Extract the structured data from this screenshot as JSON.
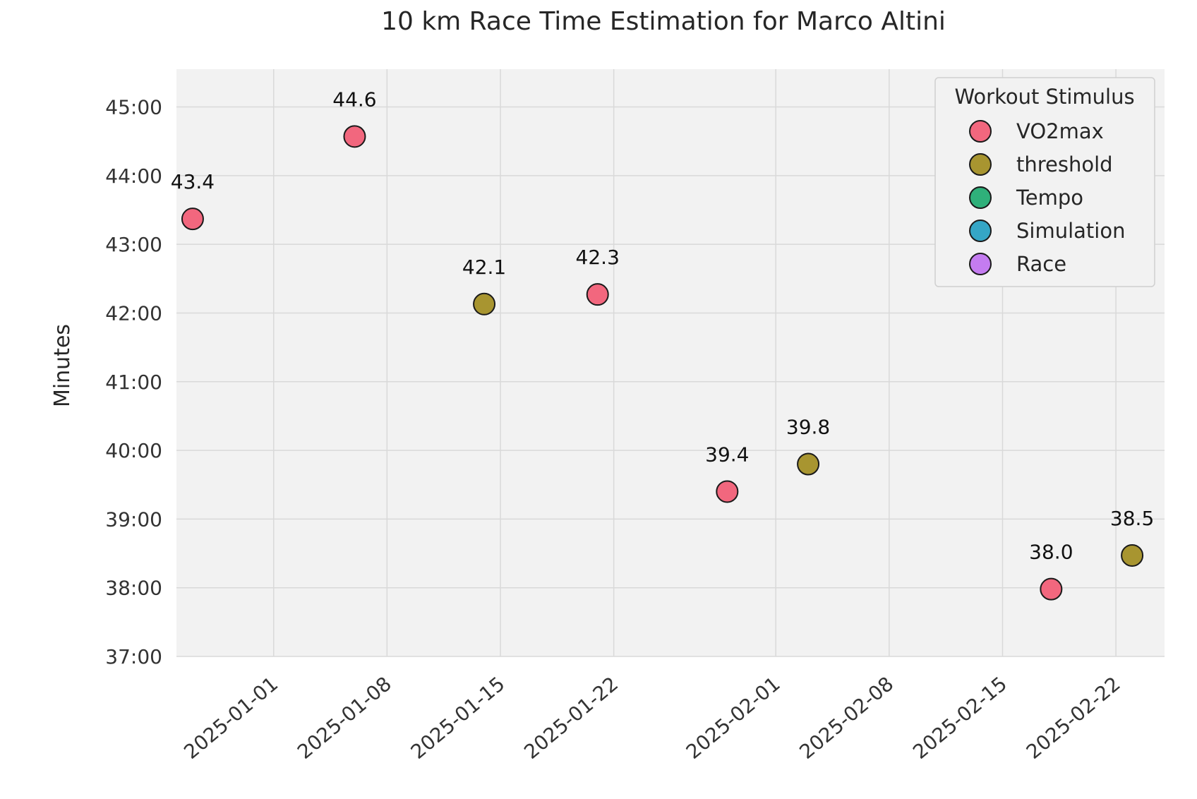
{
  "chart_data": {
    "type": "scatter",
    "title": "10 km Race Time Estimation for Marco Altini",
    "xlabel": "",
    "ylabel": "Minutes",
    "ylim": [
      37,
      45.55
    ],
    "xlim": [
      "2024-12-26",
      "2025-02-25"
    ],
    "y_ticks": [
      37,
      38,
      39,
      40,
      41,
      42,
      43,
      44,
      45
    ],
    "y_tick_labels": [
      "37:00",
      "38:00",
      "39:00",
      "40:00",
      "41:00",
      "42:00",
      "43:00",
      "44:00",
      "45:00"
    ],
    "x_ticks": [
      "2025-01-01",
      "2025-01-08",
      "2025-01-15",
      "2025-01-22",
      "2025-02-01",
      "2025-02-08",
      "2025-02-15",
      "2025-02-22"
    ],
    "grid": true,
    "legend": {
      "title": "Workout Stimulus",
      "placement": "top-right",
      "entries": [
        {
          "name": "VO2max",
          "color": "#f2677e"
        },
        {
          "name": "threshold",
          "color": "#a89530"
        },
        {
          "name": "Tempo",
          "color": "#2fb07a"
        },
        {
          "name": "Simulation",
          "color": "#35a6c6"
        },
        {
          "name": "Race",
          "color": "#c47cf0"
        }
      ]
    },
    "points": [
      {
        "date": "2024-12-27",
        "y": 43.37,
        "label": "43.4",
        "stimulus": "VO2max"
      },
      {
        "date": "2025-01-06",
        "y": 44.57,
        "label": "44.6",
        "stimulus": "VO2max"
      },
      {
        "date": "2025-01-14",
        "y": 42.13,
        "label": "42.1",
        "stimulus": "threshold"
      },
      {
        "date": "2025-01-21",
        "y": 42.27,
        "label": "42.3",
        "stimulus": "VO2max"
      },
      {
        "date": "2025-01-29",
        "y": 39.4,
        "label": "39.4",
        "stimulus": "VO2max"
      },
      {
        "date": "2025-02-03",
        "y": 39.8,
        "label": "39.8",
        "stimulus": "threshold"
      },
      {
        "date": "2025-02-18",
        "y": 37.98,
        "label": "38.0",
        "stimulus": "VO2max"
      },
      {
        "date": "2025-02-23",
        "y": 38.47,
        "label": "38.5",
        "stimulus": "threshold"
      }
    ],
    "colors": {
      "plot_background": "#f2f2f2",
      "marker_edge": "#1a1a1a"
    }
  }
}
